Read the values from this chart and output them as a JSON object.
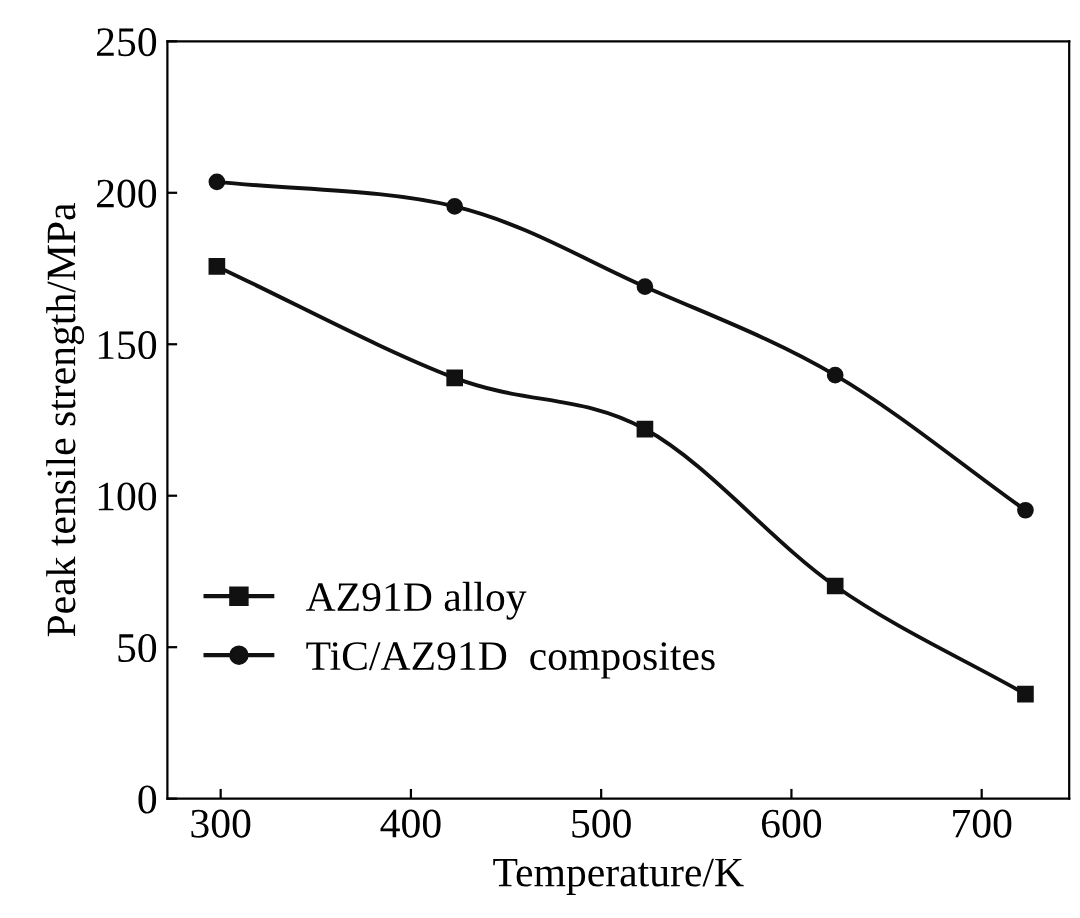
{
  "chart_data": {
    "type": "line",
    "xlabel": "Temperature/K",
    "ylabel": "Peak tensile strength/MPa",
    "x": [
      298,
      423,
      523,
      623,
      723
    ],
    "series": [
      {
        "name": "AZ91D alloy",
        "color": "#111111",
        "marker": "square",
        "values": [
          175.7,
          138.9,
          122,
          70.2,
          34.5
        ]
      },
      {
        "name": "TiC/AZ91D  composites",
        "color": "#111111",
        "marker": "circle",
        "values": [
          203.6,
          195.5,
          169,
          139.8,
          95.2
        ]
      }
    ],
    "xlim": [
      272,
      746
    ],
    "xticks": [
      300,
      400,
      500,
      600,
      700
    ],
    "ylim": [
      0,
      250
    ],
    "yticks": [
      0,
      50,
      100,
      150,
      200,
      250
    ],
    "grid": false,
    "legend": "bottom left",
    "line_style": "solid"
  }
}
